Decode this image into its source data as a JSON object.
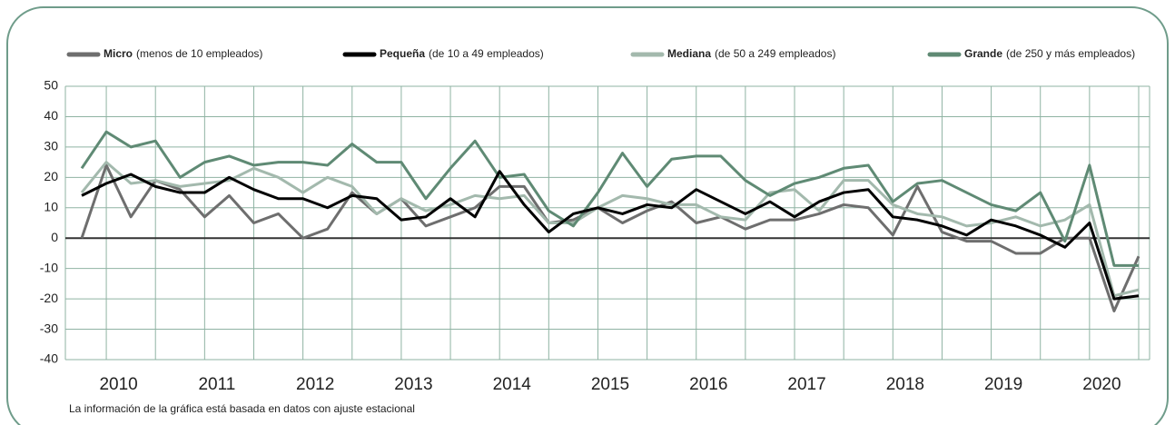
{
  "chart_data": {
    "type": "line",
    "categories": [
      "2010",
      null,
      null,
      null,
      "2011",
      null,
      null,
      null,
      "2012",
      null,
      null,
      null,
      "2013",
      null,
      null,
      null,
      "2014",
      null,
      null,
      null,
      "2015",
      null,
      null,
      null,
      "2016",
      null,
      null,
      null,
      "2017",
      null,
      null,
      null,
      "2018",
      null,
      null,
      null,
      "2019",
      null,
      null,
      null,
      "2020",
      null,
      null,
      null
    ],
    "series": [
      {
        "name": "Micro",
        "note": "(menos de 10 empleados)",
        "color": "#6e6e6e",
        "values": [
          0,
          24,
          7,
          19,
          16,
          7,
          14,
          5,
          8,
          0,
          3,
          15,
          8,
          13,
          4,
          7,
          10,
          17,
          17,
          5,
          6,
          10,
          5,
          9,
          12,
          5,
          7,
          3,
          6,
          6,
          8,
          11,
          10,
          1,
          17,
          2,
          -1,
          -1,
          -5,
          -5,
          0,
          0,
          -24,
          -6
        ]
      },
      {
        "name": "Pequeña",
        "note": "(de 10 a 49 empleados)",
        "color": "#000000",
        "values": [
          14,
          18,
          21,
          17,
          15,
          15,
          20,
          16,
          13,
          13,
          10,
          14,
          13,
          6,
          7,
          13,
          7,
          22,
          11,
          2,
          8,
          10,
          8,
          11,
          10,
          16,
          12,
          8,
          12,
          7,
          12,
          15,
          16,
          7,
          6,
          4,
          1,
          6,
          4,
          1,
          -3,
          5,
          -20,
          -19
        ]
      },
      {
        "name": "Mediana",
        "note": "(de 50 a 249 empleados)",
        "color": "#a3b9ad",
        "values": [
          15,
          25,
          18,
          19,
          17,
          18,
          19,
          23,
          20,
          15,
          20,
          17,
          8,
          13,
          9,
          11,
          14,
          13,
          14,
          5,
          5,
          10,
          14,
          13,
          11,
          11,
          7,
          6,
          15,
          16,
          9,
          19,
          19,
          11,
          8,
          7,
          4,
          5,
          7,
          4,
          6,
          11,
          -19,
          -17
        ]
      },
      {
        "name": "Grande",
        "note": "(de 250 y más empleados)",
        "color": "#5f8a74",
        "values": [
          23,
          35,
          30,
          32,
          20,
          25,
          27,
          24,
          25,
          25,
          24,
          31,
          25,
          25,
          13,
          23,
          32,
          20,
          21,
          9,
          4,
          15,
          28,
          17,
          26,
          27,
          27,
          19,
          14,
          18,
          20,
          23,
          24,
          12,
          18,
          19,
          15,
          11,
          9,
          15,
          -1,
          24,
          -9,
          -9
        ]
      }
    ],
    "ylim": [
      -40,
      50
    ],
    "yticks": [
      -40,
      -30,
      -20,
      -10,
      0,
      10,
      20,
      30,
      40,
      50
    ],
    "grid": true,
    "footnote": "La información de la gráfica está basada en datos con ajuste estacional"
  }
}
